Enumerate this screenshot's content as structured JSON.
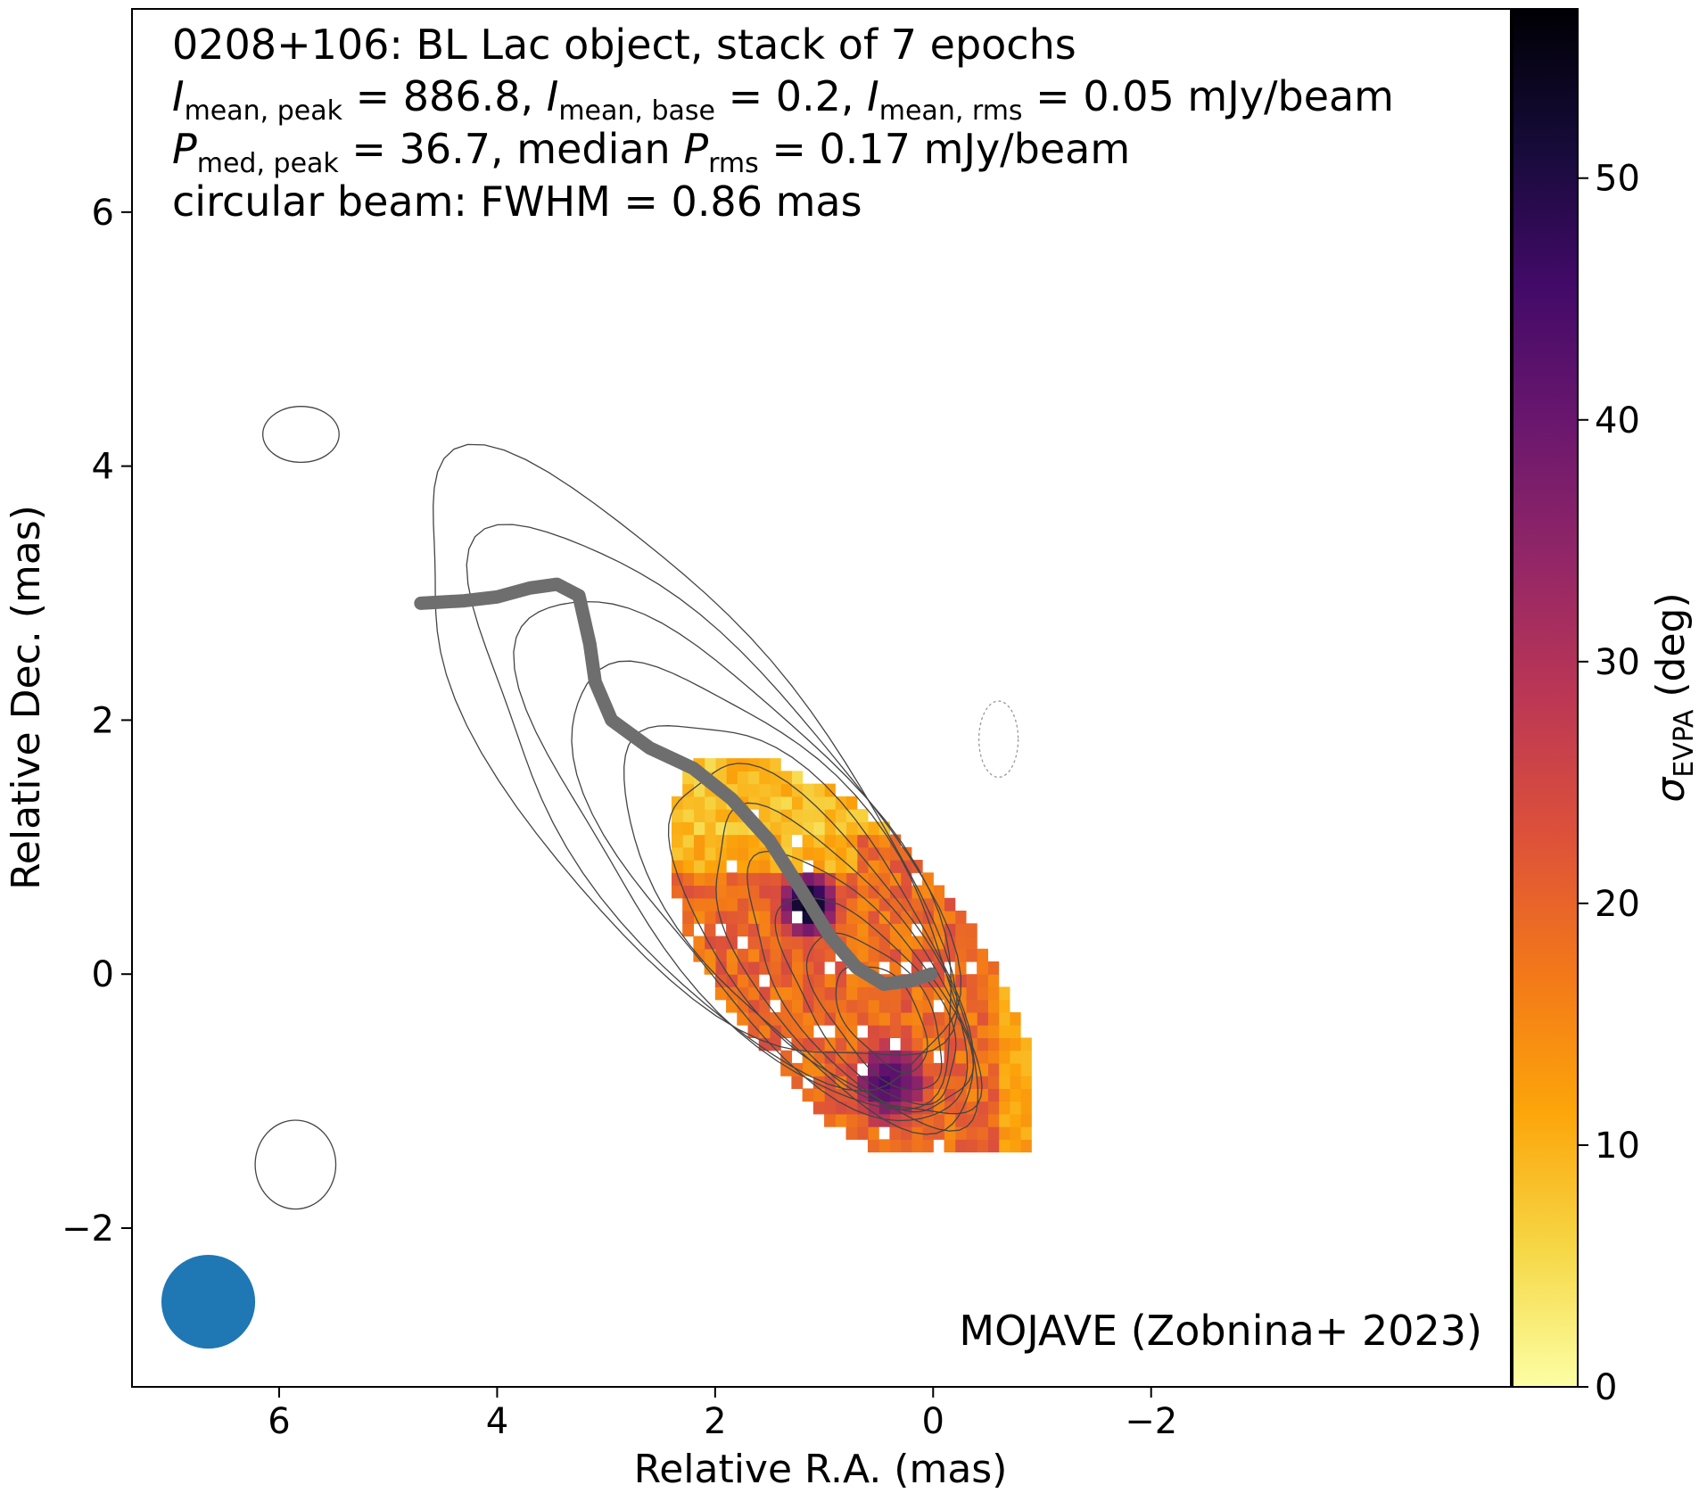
{
  "chart_data": {
    "type": "heatmap",
    "title_lines": [
      {
        "prefix": "0208+106: BL Lac object, stack of 7 epochs"
      },
      {
        "i_peak_label": "I",
        "i_peak_sub": "mean, peak",
        "i_peak_val": " = 886.8, ",
        "i_base_label": "I",
        "i_base_sub": "mean, base",
        "i_base_val": " = 0.2, ",
        "i_rms_label": "I",
        "i_rms_sub": "mean, rms",
        "i_rms_val": " = 0.05 mJy/beam"
      },
      {
        "p_peak_label": "P",
        "p_peak_sub": "med, peak",
        "p_peak_val": " = 36.7, median ",
        "p_rms_label": "P",
        "p_rms_sub": "rms",
        "p_rms_val": " = 0.17 mJy/beam"
      },
      {
        "beam": "circular beam: FWHM = 0.86 mas"
      }
    ],
    "credit": "MOJAVE (Zobnina+ 2023)",
    "xlabel": "Relative R.A. (mas)",
    "ylabel": "Relative Dec. (mas)",
    "colorbar_label_main": "σ",
    "colorbar_label_sub": "EVPA",
    "colorbar_label_unit": " (deg)",
    "xlim": [
      7.35,
      -5.3
    ],
    "ylim": [
      -3.25,
      7.6
    ],
    "xticks": [
      6,
      4,
      2,
      0,
      -2
    ],
    "xtick_labels": [
      "6",
      "4",
      "2",
      "0",
      "−2"
    ],
    "yticks": [
      -2,
      0,
      2,
      4,
      6
    ],
    "ytick_labels": [
      "−2",
      "0",
      "2",
      "4",
      "6"
    ],
    "colorbar_range": [
      0,
      57
    ],
    "colorbar_ticks": [
      0,
      10,
      20,
      30,
      40,
      50
    ],
    "colorbar_tick_labels": [
      "0",
      "10",
      "20",
      "30",
      "40",
      "50"
    ],
    "colormap": "inferno_r",
    "beam": {
      "x": 6.65,
      "y": -2.58,
      "fwhm": 0.86,
      "color": "#1f77b4"
    },
    "jet_ridge": {
      "color": "#6e6e6e",
      "points": [
        [
          4.7,
          2.92
        ],
        [
          4.3,
          2.94
        ],
        [
          4.0,
          2.97
        ],
        [
          3.7,
          3.04
        ],
        [
          3.45,
          3.07
        ],
        [
          3.25,
          2.98
        ],
        [
          3.15,
          2.6
        ],
        [
          3.1,
          2.3
        ],
        [
          2.95,
          2.0
        ],
        [
          2.6,
          1.78
        ],
        [
          2.2,
          1.62
        ],
        [
          1.85,
          1.38
        ],
        [
          1.5,
          1.05
        ],
        [
          1.2,
          0.65
        ],
        [
          0.95,
          0.3
        ],
        [
          0.7,
          0.05
        ],
        [
          0.45,
          -0.08
        ],
        [
          0.2,
          -0.05
        ],
        [
          0.02,
          0.0
        ]
      ]
    },
    "contour_levels_shown": 11
  }
}
